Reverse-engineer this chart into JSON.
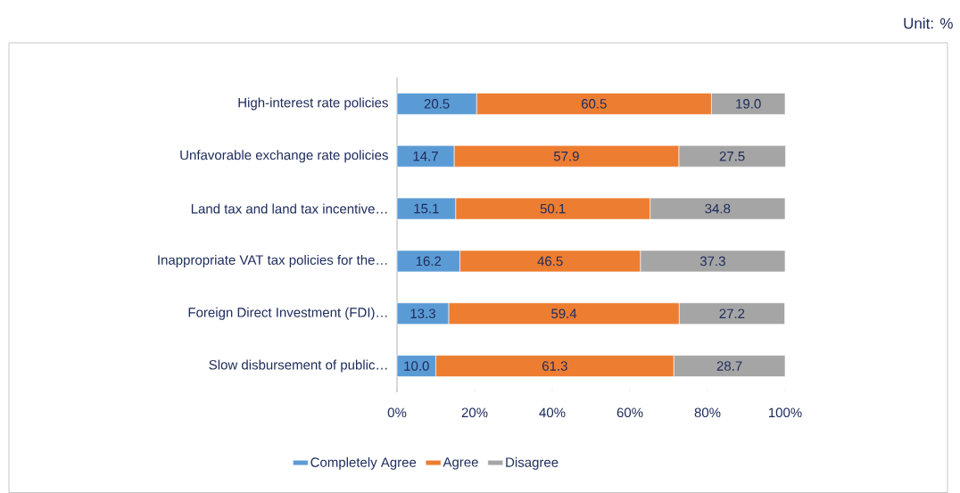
{
  "chart_data": {
    "type": "bar",
    "orientation": "horizontal",
    "stacked": true,
    "grid": false,
    "legend": "bottom",
    "annotations": [
      "Unit: %"
    ],
    "categories": [
      "High-interest rate policies",
      "Unfavorable exchange rate policies",
      "Land tax and land tax incentive…",
      "Inappropriate VAT tax policies for the…",
      "Foreign Direct Investment (FDI)…",
      "Slow disbursement of public…"
    ],
    "series": [
      {
        "name": "Completely Agree",
        "color": "#5b9bd5",
        "values": [
          20.5,
          14.7,
          15.1,
          16.2,
          13.3,
          10.0
        ],
        "value_labels": [
          "20.5",
          "14.7",
          "15.1",
          "16.2",
          "13.3",
          "10.0"
        ]
      },
      {
        "name": "Agree",
        "color": "#ed7d31",
        "values": [
          60.5,
          57.9,
          50.1,
          46.5,
          59.4,
          61.3
        ],
        "value_labels": [
          "60.5",
          "57.9",
          "50.1",
          "46.5",
          "59.4",
          "61.3"
        ]
      },
      {
        "name": "Disagree",
        "color": "#a5a5a5",
        "values": [
          19.0,
          27.5,
          34.8,
          37.3,
          27.2,
          28.7
        ],
        "value_labels": [
          "19.0",
          "27.5",
          "34.8",
          "37.3",
          "27.2",
          "28.7"
        ]
      }
    ],
    "xlim": [
      0,
      100
    ],
    "xticks": [
      {
        "value": 0,
        "label": "0%"
      },
      {
        "value": 20,
        "label": "20%"
      },
      {
        "value": 40,
        "label": "40%"
      },
      {
        "value": 60,
        "label": "60%"
      },
      {
        "value": 80,
        "label": "80%"
      },
      {
        "value": 100,
        "label": "100%"
      }
    ]
  }
}
